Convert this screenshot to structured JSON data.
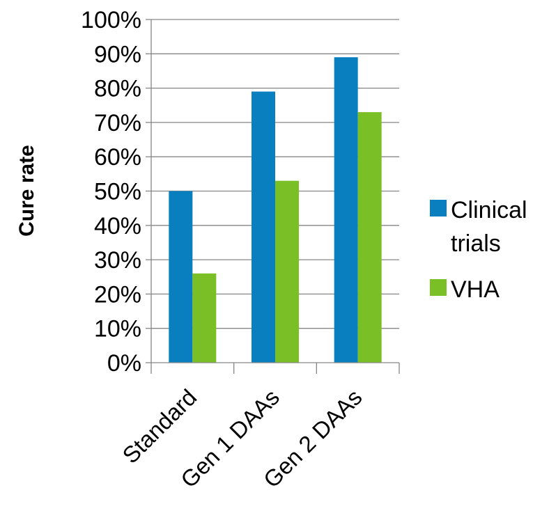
{
  "chart_data": {
    "type": "bar",
    "categories": [
      "Standard",
      "Gen 1 DAAs",
      "Gen 2 DAAs"
    ],
    "series": [
      {
        "name": "Clinical trials",
        "values": [
          50,
          79,
          89
        ],
        "color": "#0a7fc0"
      },
      {
        "name": "VHA",
        "values": [
          26,
          53,
          73
        ],
        "color": "#7bbf27"
      }
    ],
    "ylabel": "Cure rate",
    "xlabel": "",
    "ylim": [
      0,
      100
    ],
    "ytick_step": 10,
    "ytick_format": "percent",
    "grid": true,
    "legend_position": "right",
    "legend_lines": [
      [
        "Clinical",
        "trials"
      ],
      [
        "VHA"
      ]
    ]
  }
}
